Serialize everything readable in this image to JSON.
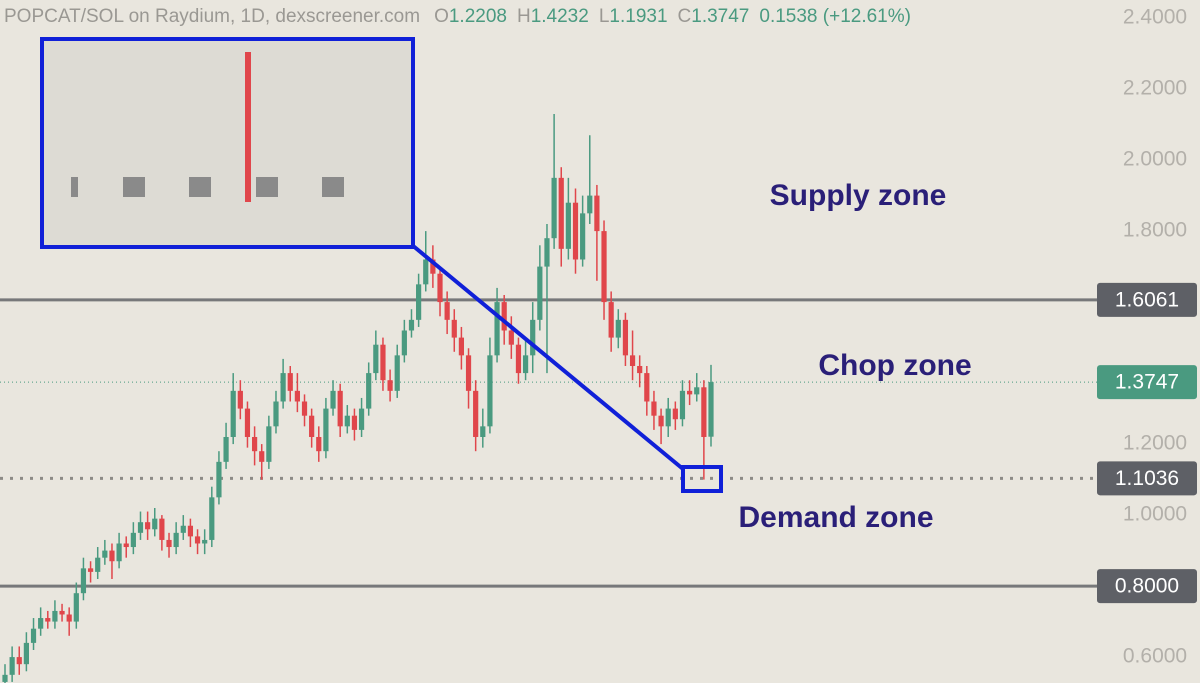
{
  "chart_data": {
    "type": "candlestick",
    "title": "POPCAT/SOL on Raydium, 1D, dexscreener.com",
    "ohlc_labels": [
      "O",
      "H",
      "L",
      "C"
    ],
    "change_label": "0.1538 (+12.61%)",
    "up_color": "#4a9a80",
    "down_color": "#e0464b",
    "open": [
      0.53,
      0.55,
      0.6,
      0.58,
      0.64,
      0.68,
      0.71,
      0.7,
      0.73,
      0.72,
      0.7,
      0.78,
      0.85,
      0.84,
      0.88,
      0.9,
      0.87,
      0.92,
      0.91,
      0.95,
      0.98,
      0.96,
      0.99,
      0.93,
      0.91,
      0.95,
      0.97,
      0.94,
      0.92,
      0.93,
      1.05,
      1.15,
      1.22,
      1.35,
      1.3,
      1.22,
      1.18,
      1.15,
      1.25,
      1.32,
      1.4,
      1.35,
      1.32,
      1.28,
      1.22,
      1.18,
      1.3,
      1.35,
      1.25,
      1.28,
      1.24,
      1.3,
      1.4,
      1.48,
      1.38,
      1.35,
      1.45,
      1.52,
      1.55,
      1.65,
      1.72,
      1.68,
      1.6,
      1.55,
      1.5,
      1.45,
      1.35,
      1.22,
      1.25,
      1.45,
      1.6,
      1.52,
      1.48,
      1.4,
      1.45,
      1.55,
      1.7,
      1.78,
      1.95,
      1.75,
      1.88,
      1.72,
      1.85,
      1.9,
      1.8,
      1.6,
      1.5,
      1.55,
      1.45,
      1.42,
      1.4,
      1.32,
      1.28,
      1.25,
      1.3,
      1.27,
      1.35,
      1.34,
      1.36,
      1.2208
    ],
    "high": [
      0.58,
      0.63,
      0.63,
      0.67,
      0.71,
      0.74,
      0.73,
      0.76,
      0.75,
      0.74,
      0.81,
      0.88,
      0.87,
      0.91,
      0.93,
      0.92,
      0.95,
      0.94,
      0.98,
      1.01,
      1.01,
      1.02,
      1.0,
      0.95,
      0.98,
      1.0,
      0.99,
      0.96,
      0.96,
      1.08,
      1.18,
      1.26,
      1.4,
      1.38,
      1.32,
      1.25,
      1.2,
      1.28,
      1.35,
      1.44,
      1.42,
      1.4,
      1.34,
      1.3,
      1.25,
      1.33,
      1.38,
      1.37,
      1.31,
      1.3,
      1.33,
      1.43,
      1.52,
      1.5,
      1.41,
      1.48,
      1.55,
      1.58,
      1.68,
      1.8,
      1.76,
      1.7,
      1.63,
      1.58,
      1.53,
      1.47,
      1.38,
      1.3,
      1.5,
      1.64,
      1.62,
      1.56,
      1.5,
      1.5,
      1.6,
      1.76,
      1.82,
      2.13,
      1.98,
      1.95,
      1.92,
      1.9,
      2.07,
      1.93,
      1.83,
      1.63,
      1.58,
      1.57,
      1.52,
      1.45,
      1.42,
      1.35,
      1.3,
      1.33,
      1.32,
      1.38,
      1.38,
      1.4,
      1.38,
      1.4232
    ],
    "low": [
      0.52,
      0.53,
      0.55,
      0.56,
      0.62,
      0.66,
      0.68,
      0.68,
      0.7,
      0.66,
      0.68,
      0.76,
      0.81,
      0.82,
      0.86,
      0.82,
      0.85,
      0.88,
      0.89,
      0.93,
      0.93,
      0.94,
      0.9,
      0.88,
      0.89,
      0.93,
      0.91,
      0.89,
      0.89,
      0.91,
      1.03,
      1.13,
      1.2,
      1.27,
      1.19,
      1.14,
      1.1,
      1.13,
      1.23,
      1.3,
      1.32,
      1.29,
      1.25,
      1.19,
      1.15,
      1.16,
      1.28,
      1.22,
      1.23,
      1.21,
      1.22,
      1.28,
      1.38,
      1.35,
      1.32,
      1.33,
      1.43,
      1.5,
      1.53,
      1.63,
      1.64,
      1.56,
      1.51,
      1.46,
      1.41,
      1.3,
      1.18,
      1.19,
      1.23,
      1.43,
      1.48,
      1.44,
      1.37,
      1.38,
      1.4,
      1.52,
      1.4,
      1.75,
      1.7,
      1.72,
      1.68,
      1.7,
      1.82,
      1.66,
      1.55,
      1.46,
      1.47,
      1.42,
      1.38,
      1.36,
      1.28,
      1.24,
      1.2,
      1.22,
      1.24,
      1.25,
      1.31,
      1.32,
      1.1,
      1.1931
    ],
    "close": [
      0.55,
      0.6,
      0.58,
      0.64,
      0.68,
      0.71,
      0.7,
      0.73,
      0.72,
      0.7,
      0.78,
      0.85,
      0.84,
      0.88,
      0.9,
      0.87,
      0.92,
      0.91,
      0.95,
      0.98,
      0.96,
      0.99,
      0.93,
      0.91,
      0.95,
      0.97,
      0.94,
      0.92,
      0.93,
      1.05,
      1.15,
      1.22,
      1.35,
      1.3,
      1.22,
      1.18,
      1.15,
      1.25,
      1.32,
      1.4,
      1.35,
      1.32,
      1.28,
      1.22,
      1.18,
      1.3,
      1.35,
      1.25,
      1.28,
      1.24,
      1.3,
      1.4,
      1.48,
      1.38,
      1.35,
      1.45,
      1.52,
      1.55,
      1.65,
      1.72,
      1.68,
      1.6,
      1.55,
      1.5,
      1.45,
      1.35,
      1.22,
      1.25,
      1.45,
      1.6,
      1.52,
      1.48,
      1.4,
      1.45,
      1.55,
      1.7,
      1.78,
      1.95,
      1.75,
      1.88,
      1.72,
      1.85,
      1.9,
      1.8,
      1.6,
      1.5,
      1.55,
      1.45,
      1.42,
      1.4,
      1.32,
      1.28,
      1.25,
      1.3,
      1.27,
      1.35,
      1.34,
      1.36,
      1.22,
      1.3747
    ],
    "ylim": [
      0.527,
      2.451
    ],
    "yticks": [
      {
        "value": 0.6,
        "label": "0.6000"
      },
      {
        "value": 1.0,
        "label": "1.0000"
      },
      {
        "value": 1.2,
        "label": "1.2000"
      },
      {
        "value": 1.8,
        "label": "1.8000"
      },
      {
        "value": 2.0,
        "label": "2.0000"
      },
      {
        "value": 2.2,
        "label": "2.2000"
      },
      {
        "value": 2.4,
        "label": "2.4000"
      }
    ],
    "price_lines": [
      {
        "value": 1.6061,
        "style": "solid"
      },
      {
        "value": 1.1036,
        "style": "dotted"
      },
      {
        "value": 0.8,
        "label": "0.8000",
        "style": "solid"
      }
    ],
    "annotations": [
      "Supply zone",
      "Chop zone",
      "Demand zone"
    ]
  }
}
